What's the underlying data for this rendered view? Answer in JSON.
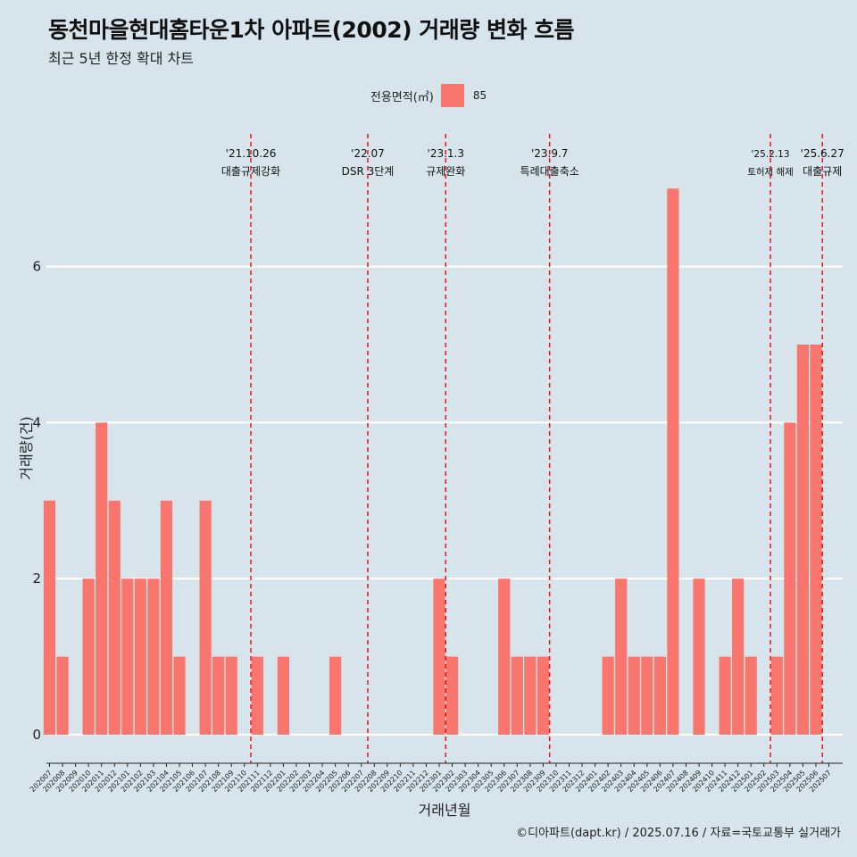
{
  "title": "동천마을현대홈타운1차 아파트(2002) 거래량 변화 흐름",
  "subtitle": "최근 5년 한정 확대 차트",
  "legend": {
    "title": "전용면적(㎡)",
    "label": "85",
    "color": "#f8766d"
  },
  "caption": "©디아파트(dapt.kr) / 2025.07.16 / 자료=국토교통부 실거래가",
  "chart_data": {
    "type": "bar",
    "title": "동천마을현대홈타운1차 아파트(2002) 거래량 변화 흐름",
    "subtitle": "최근 5년 한정 확대 차트",
    "xlabel": "거래년월",
    "ylabel": "거래량(건)",
    "ylim": [
      0,
      7
    ],
    "yticks": [
      0,
      2,
      4,
      6
    ],
    "grid": true,
    "legend_position": "top",
    "categories": [
      "202007",
      "202008",
      "202009",
      "202010",
      "202011",
      "202012",
      "202101",
      "202102",
      "202103",
      "202104",
      "202105",
      "202106",
      "202107",
      "202108",
      "202109",
      "202110",
      "202111",
      "202112",
      "202201",
      "202202",
      "202203",
      "202204",
      "202205",
      "202206",
      "202207",
      "202208",
      "202209",
      "202210",
      "202211",
      "202212",
      "202301",
      "202302",
      "202303",
      "202304",
      "202305",
      "202306",
      "202307",
      "202308",
      "202309",
      "202310",
      "202311",
      "202312",
      "202401",
      "202402",
      "202403",
      "202404",
      "202405",
      "202406",
      "202407",
      "202408",
      "202409",
      "202410",
      "202411",
      "202412",
      "202501",
      "202502",
      "202503",
      "202504",
      "202505",
      "202506",
      "202507"
    ],
    "series": [
      {
        "name": "85",
        "color": "#f8766d",
        "values": [
          3,
          1,
          0,
          2,
          4,
          3,
          2,
          2,
          2,
          3,
          1,
          0,
          3,
          1,
          1,
          0,
          1,
          0,
          1,
          0,
          0,
          0,
          1,
          0,
          0,
          0,
          0,
          0,
          0,
          0,
          2,
          1,
          0,
          0,
          0,
          2,
          1,
          1,
          1,
          0,
          0,
          0,
          0,
          1,
          2,
          1,
          1,
          1,
          7,
          0,
          2,
          0,
          1,
          2,
          1,
          0,
          1,
          4,
          5,
          5,
          0
        ]
      }
    ],
    "events": [
      {
        "position": 15.5,
        "date": "'21.10.26",
        "label": "대출규제강화"
      },
      {
        "position": 24.5,
        "date": "'22.07",
        "label": "DSR 3단계"
      },
      {
        "position": 30.5,
        "date": "'23.1.3",
        "label": "규제완화"
      },
      {
        "position": 38.5,
        "date": "'23.9.7",
        "label": "특례대출축소"
      },
      {
        "position": 55.5,
        "date": "'25.2.13",
        "label": "토허제 해제",
        "small": true
      },
      {
        "position": 59.5,
        "date": "'25.6.27",
        "label": "대출규제"
      }
    ]
  }
}
